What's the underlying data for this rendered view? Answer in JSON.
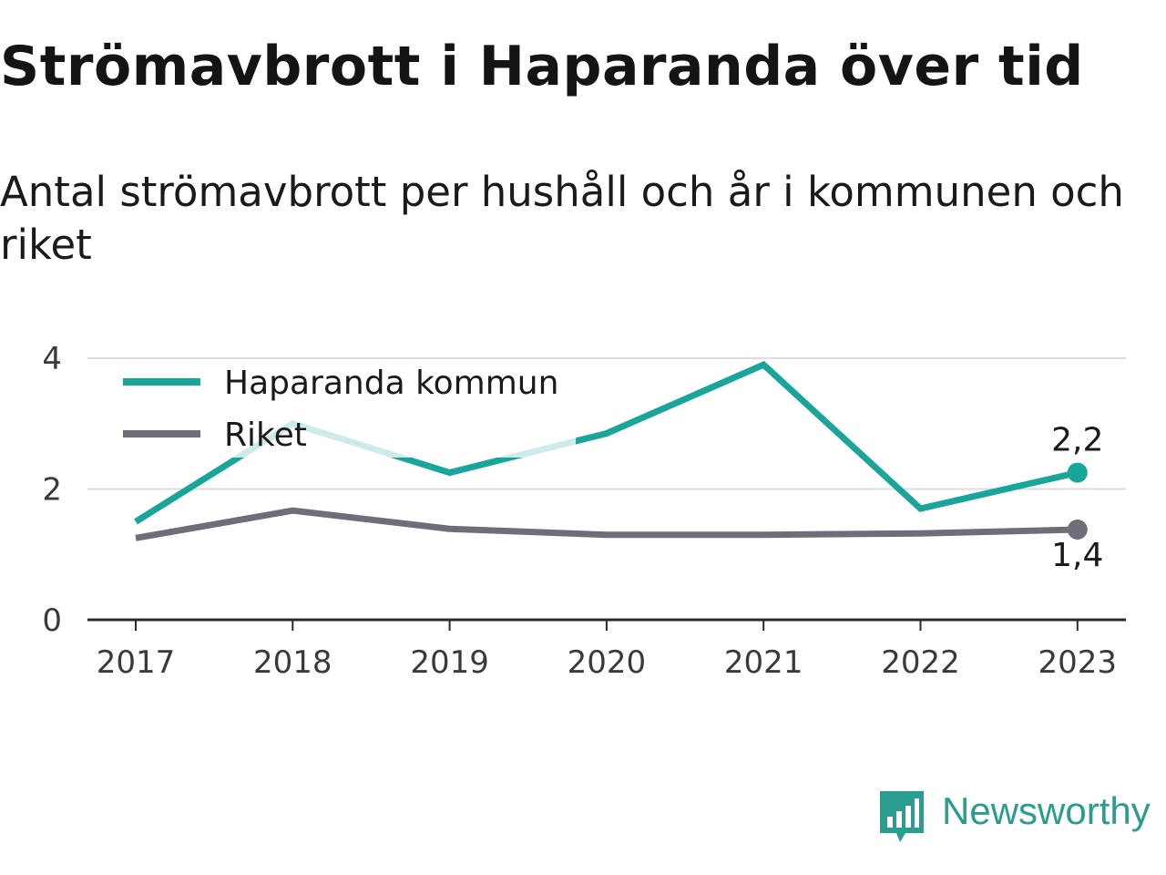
{
  "title": "Strömavbrott i Haparanda över tid",
  "subtitle": "Antal strömavbrott per hushåll och år i kommunen och riket",
  "brand": {
    "name": "Newsworthy",
    "icon": "newsworthy-logo-icon",
    "color": "#2a9d8f"
  },
  "chart_data": {
    "type": "line",
    "categories": [
      "2017",
      "2018",
      "2019",
      "2020",
      "2021",
      "2022",
      "2023"
    ],
    "series": [
      {
        "name": "Haparanda kommun",
        "color": "#1aa59a",
        "values": [
          1.5,
          3.0,
          2.25,
          2.85,
          3.9,
          1.7,
          2.25
        ]
      },
      {
        "name": "Riket",
        "color": "#6e6e78",
        "values": [
          1.25,
          1.67,
          1.39,
          1.3,
          1.3,
          1.32,
          1.38
        ]
      }
    ],
    "y_ticks": [
      "0",
      "2",
      "4"
    ],
    "ylim": [
      0,
      4
    ],
    "grid": true,
    "legend": "top-left",
    "end_labels": [
      "2,2",
      "1,4"
    ]
  }
}
